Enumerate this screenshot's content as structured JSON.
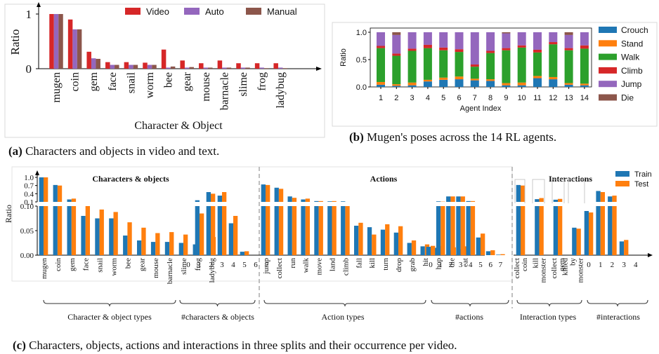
{
  "colors": {
    "video": "#d62728",
    "auto": "#9467bd",
    "manual": "#8c564b",
    "crouch": "#1f77b4",
    "stand": "#ff7f0e",
    "walk": "#2ca02c",
    "climb": "#d62728",
    "jump": "#9467bd",
    "die": "#8c564b",
    "train": "#1f77b4",
    "test": "#ff7f0e"
  },
  "captions": {
    "a_tag": "(a)",
    "a_text": "Characters and objects in video and text.",
    "b_tag": "(b)",
    "b_text": "Mugen's poses across the 14 RL agents.",
    "c_tag": "(c)",
    "c_text": "Characters, objects, actions and interactions in three splits and their occurrence per video."
  },
  "chart_data": [
    {
      "id": "a",
      "type": "bar",
      "xlabel": "Character & Object",
      "ylabel": "Ratio",
      "ylim": [
        0,
        1.05
      ],
      "yticks": [
        0,
        1
      ],
      "legend_position": "top",
      "categories": [
        "mugen",
        "coin",
        "gem",
        "face",
        "snail",
        "worm",
        "bee",
        "gear",
        "mouse",
        "barnacle",
        "slime",
        "frog",
        "ladybug"
      ],
      "series": [
        {
          "name": "Video",
          "color_key": "video",
          "values": [
            1.0,
            0.9,
            0.31,
            0.12,
            0.12,
            0.11,
            0.35,
            0.15,
            0.1,
            0.15,
            0.1,
            0.1,
            0.1
          ]
        },
        {
          "name": "Auto",
          "color_key": "auto",
          "values": [
            1.0,
            0.72,
            0.19,
            0.07,
            0.07,
            0.07,
            0.02,
            0.02,
            0.02,
            0.02,
            0.02,
            0.02,
            0.02
          ]
        },
        {
          "name": "Manual",
          "color_key": "manual",
          "values": [
            1.0,
            0.72,
            0.18,
            0.07,
            0.07,
            0.07,
            0.04,
            0.03,
            0.02,
            0.02,
            0.02,
            0.01,
            0.01
          ]
        }
      ]
    },
    {
      "id": "b",
      "type": "bar",
      "stacked": true,
      "xlabel": "Agent Index",
      "ylabel": "Ratio",
      "ylim": [
        0,
        1.0
      ],
      "yticks": [
        0.0,
        0.5,
        1.0
      ],
      "legend_position": "right",
      "categories": [
        "1",
        "2",
        "3",
        "4",
        "5",
        "6",
        "7",
        "8",
        "9",
        "10",
        "11",
        "12",
        "13",
        "14"
      ],
      "series": [
        {
          "name": "Crouch",
          "color_key": "crouch",
          "values": [
            0.04,
            0.02,
            0.03,
            0.1,
            0.13,
            0.14,
            0.12,
            0.11,
            0.03,
            0.03,
            0.16,
            0.14,
            0.04,
            0.03
          ]
        },
        {
          "name": "Stand",
          "color_key": "stand",
          "values": [
            0.05,
            0.03,
            0.05,
            0.03,
            0.04,
            0.05,
            0.03,
            0.03,
            0.04,
            0.05,
            0.04,
            0.04,
            0.03,
            0.03
          ]
        },
        {
          "name": "Walk",
          "color_key": "walk",
          "values": [
            0.62,
            0.52,
            0.58,
            0.58,
            0.5,
            0.45,
            0.22,
            0.48,
            0.6,
            0.64,
            0.43,
            0.6,
            0.6,
            0.64
          ]
        },
        {
          "name": "Climb",
          "color_key": "climb",
          "values": [
            0.04,
            0.04,
            0.04,
            0.06,
            0.05,
            0.05,
            0.04,
            0.04,
            0.04,
            0.04,
            0.05,
            0.04,
            0.04,
            0.06
          ]
        },
        {
          "name": "Jump",
          "color_key": "jump",
          "values": [
            0.25,
            0.34,
            0.3,
            0.23,
            0.28,
            0.31,
            0.59,
            0.34,
            0.27,
            0.24,
            0.32,
            0.18,
            0.24,
            0.24
          ]
        },
        {
          "name": "Die",
          "color_key": "die",
          "values": [
            0.0,
            0.05,
            0.0,
            0.0,
            0.0,
            0.0,
            0.0,
            0.0,
            0.02,
            0.0,
            0.0,
            0.0,
            0.05,
            0.0
          ]
        }
      ]
    },
    {
      "id": "c",
      "type": "bar",
      "broken_axis": true,
      "ylabel": "Ratio",
      "lower_ylim": [
        0,
        0.1
      ],
      "lower_yticks": [
        "0.00",
        "0.05",
        "0.10"
      ],
      "upper_ylim": [
        0.1,
        1.0
      ],
      "upper_yticks": [
        "0.1",
        "0.4",
        "0.7",
        "1.0"
      ],
      "legend_position": "top-right",
      "series_names": [
        "Train",
        "Test"
      ],
      "panels": [
        {
          "title": "Characters & objects",
          "group_label": "Character & object types",
          "categories": [
            "mugen",
            "coin",
            "gem",
            "face",
            "snail",
            "worm",
            "bee",
            "gear",
            "mouse",
            "barnacle",
            "slime",
            "frog",
            "ladybug"
          ],
          "train": [
            1.0,
            0.72,
            0.19,
            0.08,
            0.075,
            0.075,
            0.04,
            0.03,
            0.027,
            0.027,
            0.025,
            0.022,
            0.02
          ],
          "test": [
            1.0,
            0.7,
            0.22,
            0.1,
            0.093,
            0.088,
            0.067,
            0.056,
            0.045,
            0.047,
            0.042,
            0.039,
            0.037
          ]
        },
        {
          "title": "",
          "group_label": "#characters & objects",
          "categories": [
            "0",
            "1",
            "2",
            "3",
            "4",
            "5",
            "6",
            "7"
          ],
          "train": [
            0.0,
            0.16,
            0.46,
            0.33,
            0.065,
            0.007,
            0.0,
            0.0
          ],
          "test": [
            0.0,
            0.085,
            0.4,
            0.46,
            0.08,
            0.008,
            0.0,
            0.0
          ]
        },
        {
          "title": "Actions",
          "group_label": "Action types",
          "categories": [
            "jump",
            "collect",
            "run",
            "walk",
            "move",
            "land",
            "climb",
            "fall",
            "kill",
            "turn",
            "drop",
            "grab",
            "hit",
            "hop",
            "die",
            "eat"
          ],
          "train": [
            0.74,
            0.62,
            0.3,
            0.19,
            0.13,
            0.12,
            0.12,
            0.06,
            0.057,
            0.052,
            0.046,
            0.025,
            0.018,
            0.015,
            0.01,
            0.012
          ],
          "test": [
            0.72,
            0.58,
            0.25,
            0.22,
            0.13,
            0.13,
            0.1,
            0.066,
            0.042,
            0.063,
            0.059,
            0.03,
            0.022,
            0.019,
            0.016,
            0.018
          ]
        },
        {
          "title": "",
          "group_label": "#actions",
          "categories": [
            "0",
            "1",
            "2",
            "3",
            "4",
            "5",
            "6",
            "7"
          ],
          "train": [
            0.017,
            0.12,
            0.3,
            0.3,
            0.13,
            0.036,
            0.008,
            0.001
          ],
          "test": [
            0.019,
            0.11,
            0.3,
            0.3,
            0.13,
            0.044,
            0.01,
            0.002
          ]
        },
        {
          "title": "Interactions",
          "group_label": "Interaction types",
          "categories": [
            "collect coin",
            "kill monster",
            "collect gem",
            "killed by monster"
          ],
          "train": [
            0.72,
            0.2,
            0.18,
            0.056
          ],
          "test": [
            0.7,
            0.24,
            0.21,
            0.054
          ]
        },
        {
          "title": "",
          "group_label": "#interactions",
          "categories": [
            "0",
            "1",
            "2",
            "3",
            "4"
          ],
          "train": [
            0.09,
            0.5,
            0.3,
            0.028,
            0.0
          ],
          "test": [
            0.087,
            0.46,
            0.33,
            0.031,
            0.0
          ]
        }
      ]
    }
  ]
}
